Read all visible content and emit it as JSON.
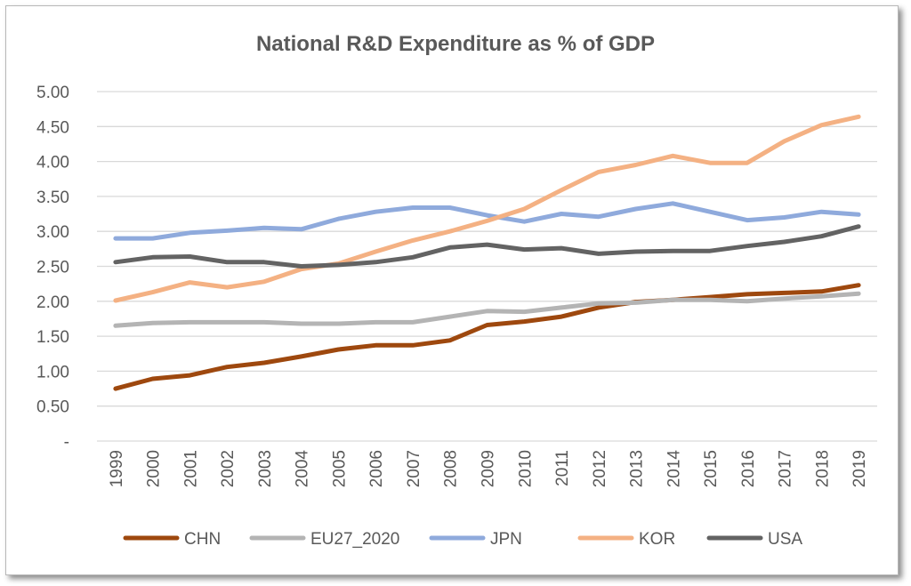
{
  "chart_data": {
    "type": "line",
    "title": "National R&D Expenditure as % of GDP",
    "xlabel": "",
    "ylabel": "",
    "ylim": [
      0,
      5
    ],
    "y_ticks": [
      {
        "value": 0,
        "label": "-"
      },
      {
        "value": 0.5,
        "label": "0.50"
      },
      {
        "value": 1.0,
        "label": "1.00"
      },
      {
        "value": 1.5,
        "label": "1.50"
      },
      {
        "value": 2.0,
        "label": "2.00"
      },
      {
        "value": 2.5,
        "label": "2.50"
      },
      {
        "value": 3.0,
        "label": "3.00"
      },
      {
        "value": 3.5,
        "label": "3.50"
      },
      {
        "value": 4.0,
        "label": "4.00"
      },
      {
        "value": 4.5,
        "label": "4.50"
      },
      {
        "value": 5.0,
        "label": "5.00"
      }
    ],
    "grid": true,
    "legend_position": "bottom",
    "categories": [
      "1999",
      "2000",
      "2001",
      "2002",
      "2003",
      "2004",
      "2005",
      "2006",
      "2007",
      "2008",
      "2009",
      "2010",
      "2011",
      "2012",
      "2013",
      "2014",
      "2015",
      "2016",
      "2017",
      "2018",
      "2019"
    ],
    "series": [
      {
        "name": "CHN",
        "color": "#9e480e",
        "values": [
          0.75,
          0.89,
          0.94,
          1.06,
          1.12,
          1.21,
          1.31,
          1.37,
          1.37,
          1.44,
          1.66,
          1.71,
          1.78,
          1.91,
          1.99,
          2.02,
          2.06,
          2.1,
          2.12,
          2.14,
          2.23
        ]
      },
      {
        "name": "EU27_2020",
        "color": "#b4b4b4",
        "values": [
          1.65,
          1.69,
          1.7,
          1.7,
          1.7,
          1.68,
          1.68,
          1.7,
          1.7,
          1.78,
          1.86,
          1.85,
          1.91,
          1.97,
          1.98,
          2.02,
          2.02,
          2.0,
          2.04,
          2.07,
          2.11
        ]
      },
      {
        "name": "JPN",
        "color": "#8faadc",
        "values": [
          2.9,
          2.9,
          2.98,
          3.01,
          3.05,
          3.03,
          3.18,
          3.28,
          3.34,
          3.34,
          3.23,
          3.14,
          3.25,
          3.21,
          3.32,
          3.4,
          3.28,
          3.16,
          3.2,
          3.28,
          3.24
        ]
      },
      {
        "name": "KOR",
        "color": "#f4b183",
        "values": [
          2.01,
          2.13,
          2.27,
          2.2,
          2.28,
          2.46,
          2.54,
          2.71,
          2.87,
          3.0,
          3.15,
          3.32,
          3.59,
          3.85,
          3.95,
          4.08,
          3.98,
          3.98,
          4.29,
          4.52,
          4.64
        ]
      },
      {
        "name": "USA",
        "color": "#636363",
        "values": [
          2.56,
          2.63,
          2.64,
          2.56,
          2.56,
          2.5,
          2.52,
          2.56,
          2.63,
          2.77,
          2.81,
          2.74,
          2.76,
          2.68,
          2.71,
          2.72,
          2.72,
          2.79,
          2.85,
          2.93,
          3.07
        ]
      }
    ]
  }
}
